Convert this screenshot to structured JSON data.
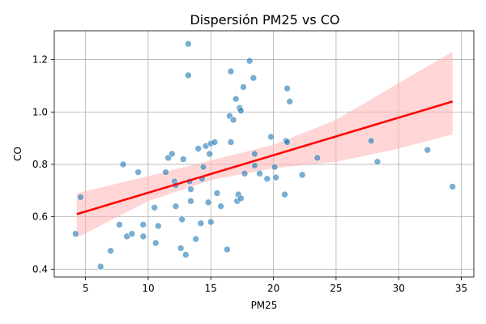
{
  "chart_data": {
    "type": "scatter",
    "title": "Dispersión PM25 vs CO",
    "xlabel": "PM25",
    "ylabel": "CO",
    "xlim": [
      2.5,
      36.0
    ],
    "ylim": [
      0.37,
      1.31
    ],
    "xticks": [
      5,
      10,
      15,
      20,
      25,
      30,
      35
    ],
    "yticks": [
      0.4,
      0.6,
      0.8,
      1.0,
      1.2
    ],
    "xtick_labels": [
      "5",
      "10",
      "15",
      "20",
      "25",
      "30",
      "35"
    ],
    "ytick_labels": [
      "0.4",
      "0.6",
      "0.8",
      "1.0",
      "1.2"
    ],
    "grid": true,
    "point_color": "#1f77b4",
    "regression": {
      "color": "#ff0000",
      "band_color": "#ffb3b3",
      "x": [
        4.3,
        34.3
      ],
      "y": [
        0.61,
        1.04
      ],
      "band": {
        "x": [
          4.3,
          10.0,
          15.0,
          20.0,
          25.0,
          30.0,
          34.3
        ],
        "lower": [
          0.52,
          0.66,
          0.74,
          0.785,
          0.81,
          0.86,
          0.915
        ],
        "upper": [
          0.69,
          0.755,
          0.815,
          0.875,
          0.97,
          1.11,
          1.23
        ]
      }
    },
    "points": [
      [
        4.2,
        0.535
      ],
      [
        4.6,
        0.675
      ],
      [
        6.2,
        0.41
      ],
      [
        7.0,
        0.47
      ],
      [
        7.7,
        0.57
      ],
      [
        8.0,
        0.8
      ],
      [
        8.3,
        0.525
      ],
      [
        8.7,
        0.535
      ],
      [
        9.2,
        0.77
      ],
      [
        9.6,
        0.525
      ],
      [
        9.6,
        0.57
      ],
      [
        10.5,
        0.635
      ],
      [
        10.6,
        0.5
      ],
      [
        10.8,
        0.565
      ],
      [
        11.4,
        0.77
      ],
      [
        11.6,
        0.825
      ],
      [
        11.9,
        0.84
      ],
      [
        12.1,
        0.735
      ],
      [
        12.2,
        0.72
      ],
      [
        12.2,
        0.64
      ],
      [
        12.6,
        0.48
      ],
      [
        12.7,
        0.59
      ],
      [
        12.8,
        0.82
      ],
      [
        13.0,
        0.455
      ],
      [
        13.2,
        1.26
      ],
      [
        13.2,
        1.14
      ],
      [
        13.3,
        0.735
      ],
      [
        13.4,
        0.66
      ],
      [
        13.4,
        0.705
      ],
      [
        13.8,
        0.515
      ],
      [
        14.0,
        0.86
      ],
      [
        14.2,
        0.575
      ],
      [
        14.3,
        0.745
      ],
      [
        14.4,
        0.79
      ],
      [
        14.6,
        0.87
      ],
      [
        14.8,
        0.655
      ],
      [
        14.9,
        0.84
      ],
      [
        15.0,
        0.58
      ],
      [
        15.0,
        0.88
      ],
      [
        15.3,
        0.885
      ],
      [
        15.5,
        0.69
      ],
      [
        15.8,
        0.64
      ],
      [
        16.3,
        0.475
      ],
      [
        16.5,
        0.985
      ],
      [
        16.6,
        1.155
      ],
      [
        16.6,
        0.885
      ],
      [
        16.8,
        0.97
      ],
      [
        17.0,
        1.05
      ],
      [
        17.1,
        0.66
      ],
      [
        17.2,
        0.685
      ],
      [
        17.3,
        1.015
      ],
      [
        17.4,
        1.005
      ],
      [
        17.4,
        0.67
      ],
      [
        17.6,
        1.095
      ],
      [
        17.7,
        0.765
      ],
      [
        18.1,
        1.195
      ],
      [
        18.4,
        1.13
      ],
      [
        18.5,
        0.84
      ],
      [
        18.5,
        0.795
      ],
      [
        18.9,
        0.765
      ],
      [
        19.5,
        0.745
      ],
      [
        19.8,
        0.905
      ],
      [
        20.1,
        0.79
      ],
      [
        20.2,
        0.75
      ],
      [
        20.9,
        0.685
      ],
      [
        21.0,
        0.89
      ],
      [
        21.1,
        0.885
      ],
      [
        21.1,
        1.09
      ],
      [
        21.3,
        1.04
      ],
      [
        22.3,
        0.76
      ],
      [
        23.5,
        0.825
      ],
      [
        27.8,
        0.89
      ],
      [
        28.3,
        0.81
      ],
      [
        32.3,
        0.855
      ],
      [
        34.3,
        0.715
      ]
    ]
  }
}
